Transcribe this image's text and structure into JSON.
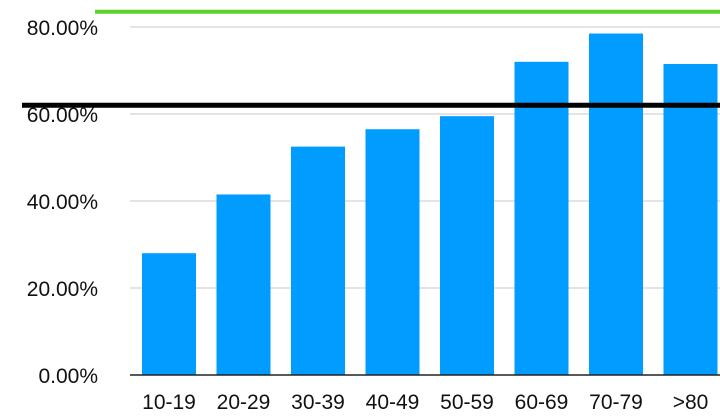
{
  "chart_data": {
    "type": "bar",
    "categories": [
      "10-19",
      "20-29",
      "30-39",
      "40-49",
      "50-59",
      "60-69",
      "70-79",
      ">80"
    ],
    "values": [
      28,
      41.5,
      52.5,
      56.5,
      59.5,
      72,
      78.5,
      71.5
    ],
    "ylim": [
      0,
      80
    ],
    "yticks": [
      0,
      20,
      40,
      60,
      80
    ],
    "ytick_labels": [
      "0.00%",
      "20.00%",
      "40.00%",
      "60.00%",
      "80.00%"
    ],
    "reference_lines": [
      {
        "value": 62,
        "color": "#000000"
      },
      {
        "value": 83.5,
        "color": "#5fd02c"
      }
    ],
    "bar_color": "#009cff",
    "grid": true,
    "title": "",
    "xlabel": "",
    "ylabel": ""
  }
}
